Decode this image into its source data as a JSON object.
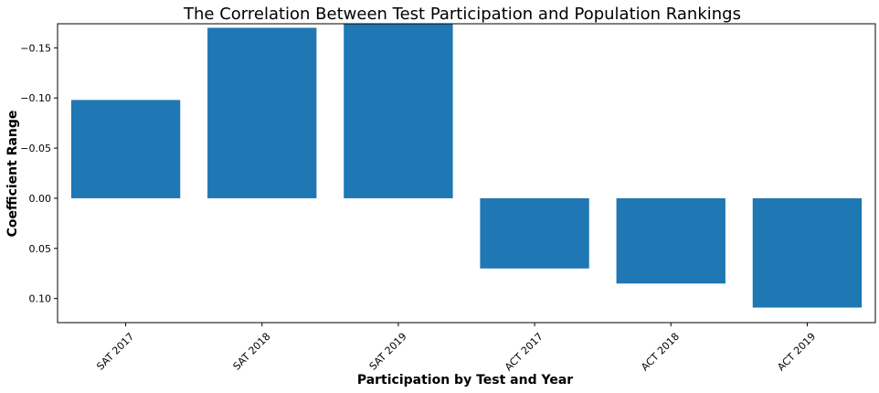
{
  "chart_data": {
    "type": "bar",
    "title": "The Correlation Between Test Participation and Population Rankings",
    "xlabel": "Participation by Test and Year",
    "ylabel": "Coefficient Range",
    "categories": [
      "SAT 2017",
      "SAT 2018",
      "SAT 2019",
      "ACT 2017",
      "ACT 2018",
      "ACT 2019"
    ],
    "values": [
      -0.098,
      -0.17,
      -0.174,
      0.07,
      0.085,
      0.109
    ],
    "ylim": [
      0.124,
      -0.174
    ],
    "y_inverted": true,
    "yticks": [
      -0.15,
      -0.1,
      -0.05,
      0.0,
      0.05,
      0.1
    ],
    "ytick_labels": [
      "−0.15",
      "−0.10",
      "−0.05",
      "0.00",
      "0.05",
      "0.10"
    ],
    "bar_color": "#1f77b4",
    "grid": false,
    "legend": false
  }
}
